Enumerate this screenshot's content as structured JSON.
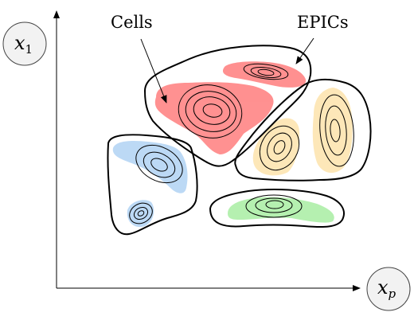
{
  "labels": {
    "cells": "Cells",
    "epics": "EPICs"
  },
  "axes": {
    "vertical": {
      "symbol": "x",
      "subscript": "1"
    },
    "horizontal": {
      "symbol": "x",
      "subscript": "p"
    }
  },
  "colors": {
    "red_region": "#ff8b8b",
    "blue_region": "#bcd9f5",
    "yellow_region": "#fde7b8",
    "green_region": "#b5f0b0",
    "outline": "#000000"
  }
}
